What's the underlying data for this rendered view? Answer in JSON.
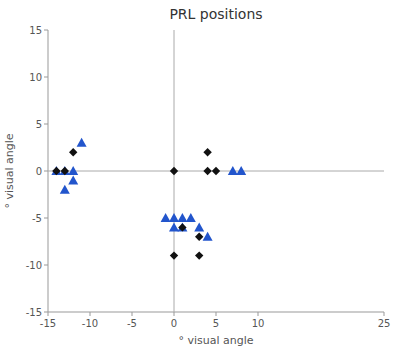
{
  "chart_data": {
    "type": "scatter",
    "title": "PRL positions",
    "x_label": "° visual angle",
    "y_label": "° visual angle",
    "xlim": [
      -15,
      25
    ],
    "ylim": [
      -15,
      15
    ],
    "xticks": [
      -15,
      -10,
      -5,
      0,
      5,
      10,
      25
    ],
    "yticks": [
      -15,
      -10,
      -5,
      0,
      5,
      10,
      15
    ],
    "series": [
      {
        "color": "#111111",
        "marker": "diamond",
        "x": [
          -12,
          -13,
          -14,
          0,
          4,
          4,
          5,
          1,
          3,
          3,
          0
        ],
        "values": [
          2,
          0,
          0,
          0,
          2,
          0,
          0,
          -6,
          -7,
          -9,
          -9
        ]
      },
      {
        "color": "#2255cc",
        "marker": "triangle",
        "x": [
          -14,
          -13,
          -12,
          -12,
          -13,
          -1,
          0,
          1,
          2,
          1,
          0,
          3,
          4,
          7,
          8,
          -11
        ],
        "values": [
          0,
          0,
          0,
          -1,
          -2,
          -5,
          -5,
          -5,
          -5,
          -6,
          -6,
          -6,
          -7,
          0,
          0,
          3
        ]
      }
    ]
  }
}
